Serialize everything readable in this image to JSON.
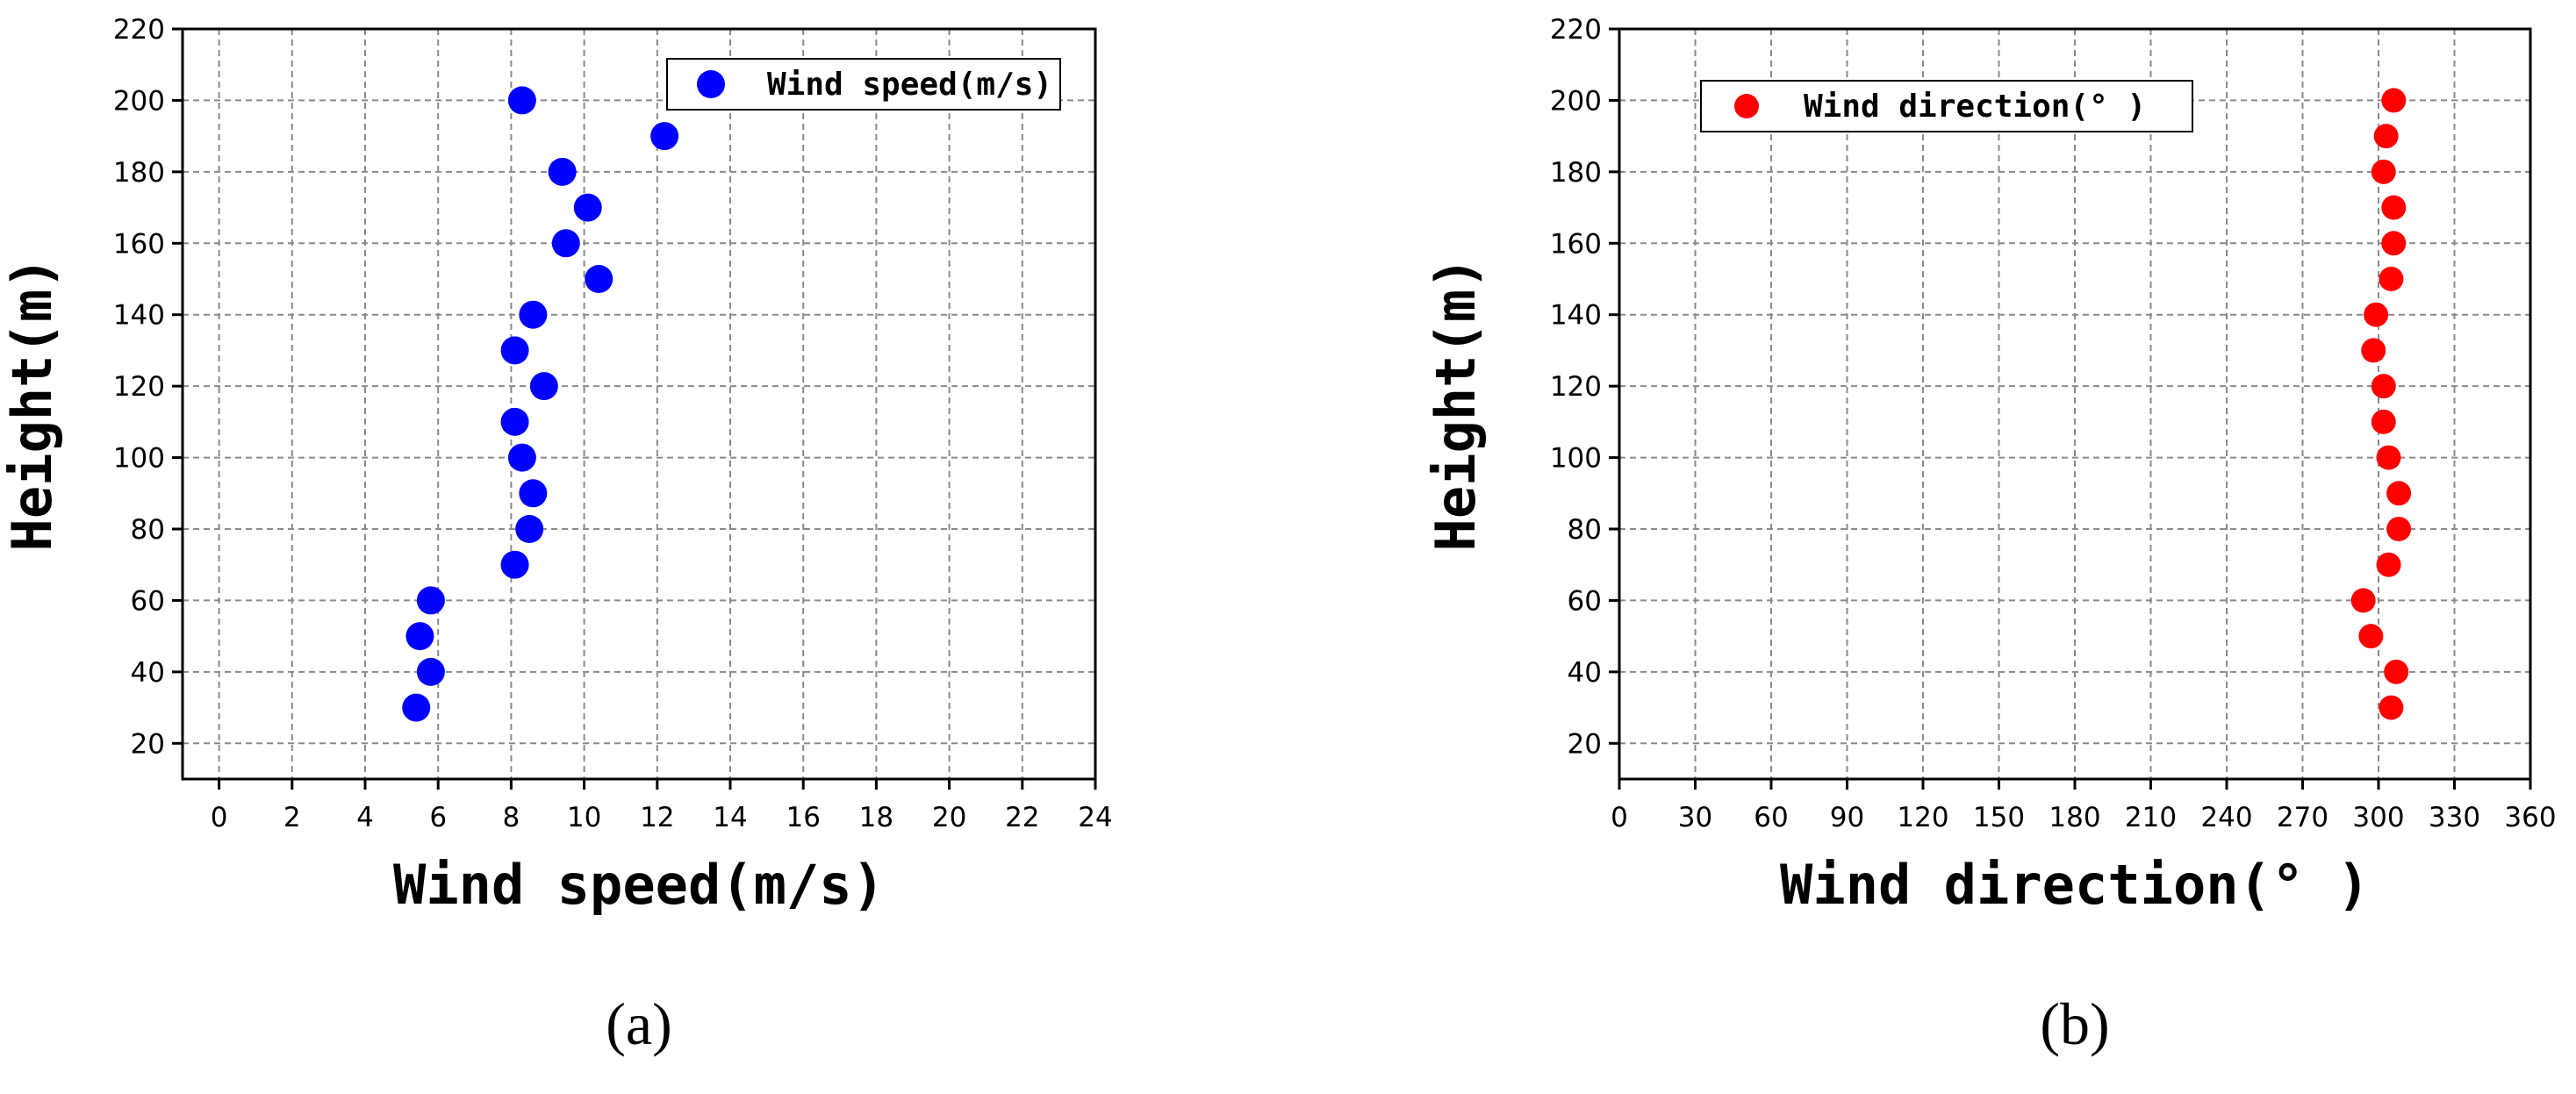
{
  "chart_data": [
    {
      "type": "scatter",
      "panel_label": "(a)",
      "xlabel": "Wind speed(m/s)",
      "ylabel": "Height(m)",
      "xlim": [
        -1,
        24
      ],
      "ylim": [
        10,
        220
      ],
      "xticks": [
        0,
        2,
        4,
        6,
        8,
        10,
        12,
        14,
        16,
        18,
        20,
        22,
        24
      ],
      "yticks": [
        20,
        40,
        60,
        80,
        100,
        120,
        140,
        160,
        180,
        200,
        220
      ],
      "grid": true,
      "legend_position": "top-right",
      "series": [
        {
          "name": "Wind speed(m/s)",
          "color": "#0000ff",
          "points": [
            {
              "x": 5.4,
              "y": 30
            },
            {
              "x": 5.8,
              "y": 40
            },
            {
              "x": 5.5,
              "y": 50
            },
            {
              "x": 5.8,
              "y": 60
            },
            {
              "x": 8.1,
              "y": 70
            },
            {
              "x": 8.5,
              "y": 80
            },
            {
              "x": 8.6,
              "y": 90
            },
            {
              "x": 8.3,
              "y": 100
            },
            {
              "x": 8.1,
              "y": 110
            },
            {
              "x": 8.9,
              "y": 120
            },
            {
              "x": 8.1,
              "y": 130
            },
            {
              "x": 8.6,
              "y": 140
            },
            {
              "x": 10.4,
              "y": 150
            },
            {
              "x": 9.5,
              "y": 160
            },
            {
              "x": 10.1,
              "y": 170
            },
            {
              "x": 9.4,
              "y": 180
            },
            {
              "x": 12.2,
              "y": 190
            },
            {
              "x": 8.3,
              "y": 200
            }
          ]
        }
      ]
    },
    {
      "type": "scatter",
      "panel_label": "(b)",
      "xlabel": "Wind direction(° )",
      "ylabel": "Height(m)",
      "xlim": [
        0,
        360
      ],
      "ylim": [
        10,
        220
      ],
      "xticks": [
        0,
        30,
        60,
        90,
        120,
        150,
        180,
        210,
        240,
        270,
        300,
        330,
        360
      ],
      "yticks": [
        20,
        40,
        60,
        80,
        100,
        120,
        140,
        160,
        180,
        200,
        220
      ],
      "grid": true,
      "legend_position": "top-right",
      "series": [
        {
          "name": "Wind direction(° )",
          "color": "#ff0000",
          "points": [
            {
              "x": 305,
              "y": 30
            },
            {
              "x": 307,
              "y": 40
            },
            {
              "x": 297,
              "y": 50
            },
            {
              "x": 294,
              "y": 60
            },
            {
              "x": 304,
              "y": 70
            },
            {
              "x": 308,
              "y": 80
            },
            {
              "x": 308,
              "y": 90
            },
            {
              "x": 304,
              "y": 100
            },
            {
              "x": 302,
              "y": 110
            },
            {
              "x": 302,
              "y": 120
            },
            {
              "x": 298,
              "y": 130
            },
            {
              "x": 299,
              "y": 140
            },
            {
              "x": 305,
              "y": 150
            },
            {
              "x": 306,
              "y": 160
            },
            {
              "x": 306,
              "y": 170
            },
            {
              "x": 302,
              "y": 180
            },
            {
              "x": 303,
              "y": 190
            },
            {
              "x": 306,
              "y": 200
            }
          ]
        }
      ]
    }
  ]
}
